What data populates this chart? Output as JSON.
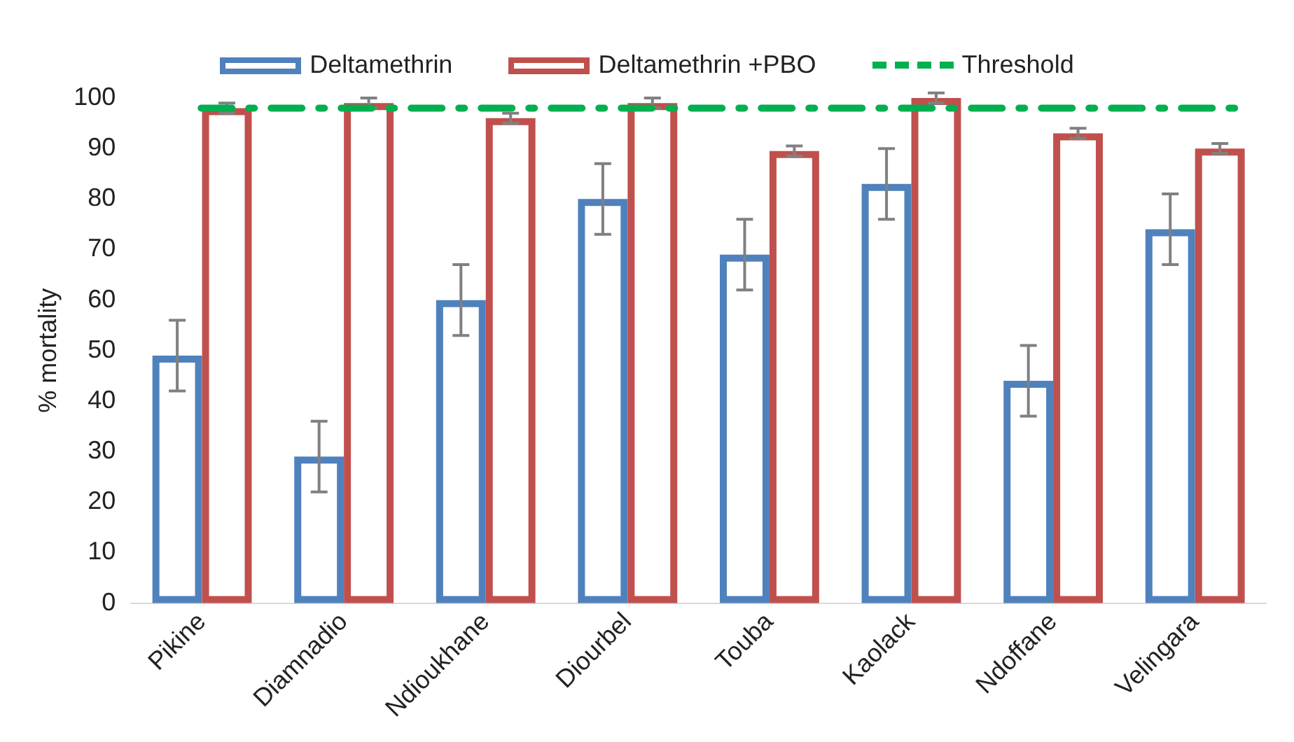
{
  "chart_data": {
    "type": "bar",
    "ylabel": "% mortality",
    "categories": [
      "Pikine",
      "Diamnadio",
      "Ndioukhane",
      "Diourbel",
      "Touba",
      "Kaolack",
      "Ndoffane",
      "Velingara"
    ],
    "series": [
      {
        "name": "Deltamethrin",
        "color": "#4f81bd",
        "values": [
          49,
          29,
          60,
          80,
          69,
          83,
          44,
          74
        ],
        "errors": [
          7,
          7,
          7,
          7,
          7,
          7,
          7,
          7
        ]
      },
      {
        "name": "Deltamethrin +PBO",
        "color": "#c0504d",
        "values": [
          98,
          99,
          96,
          99,
          89.5,
          100,
          93,
          90
        ],
        "errors": [
          1,
          1,
          1,
          1,
          1,
          1,
          1,
          1
        ]
      }
    ],
    "ylim": [
      0,
      100
    ],
    "yticks": [
      0,
      10,
      20,
      30,
      40,
      50,
      60,
      70,
      80,
      90,
      100
    ],
    "grid": false,
    "legend": "top",
    "ref_lines": [
      {
        "axis": "y",
        "value": 98,
        "label": "Threshold",
        "color": "#00b050",
        "line_style": "dashed"
      }
    ]
  }
}
